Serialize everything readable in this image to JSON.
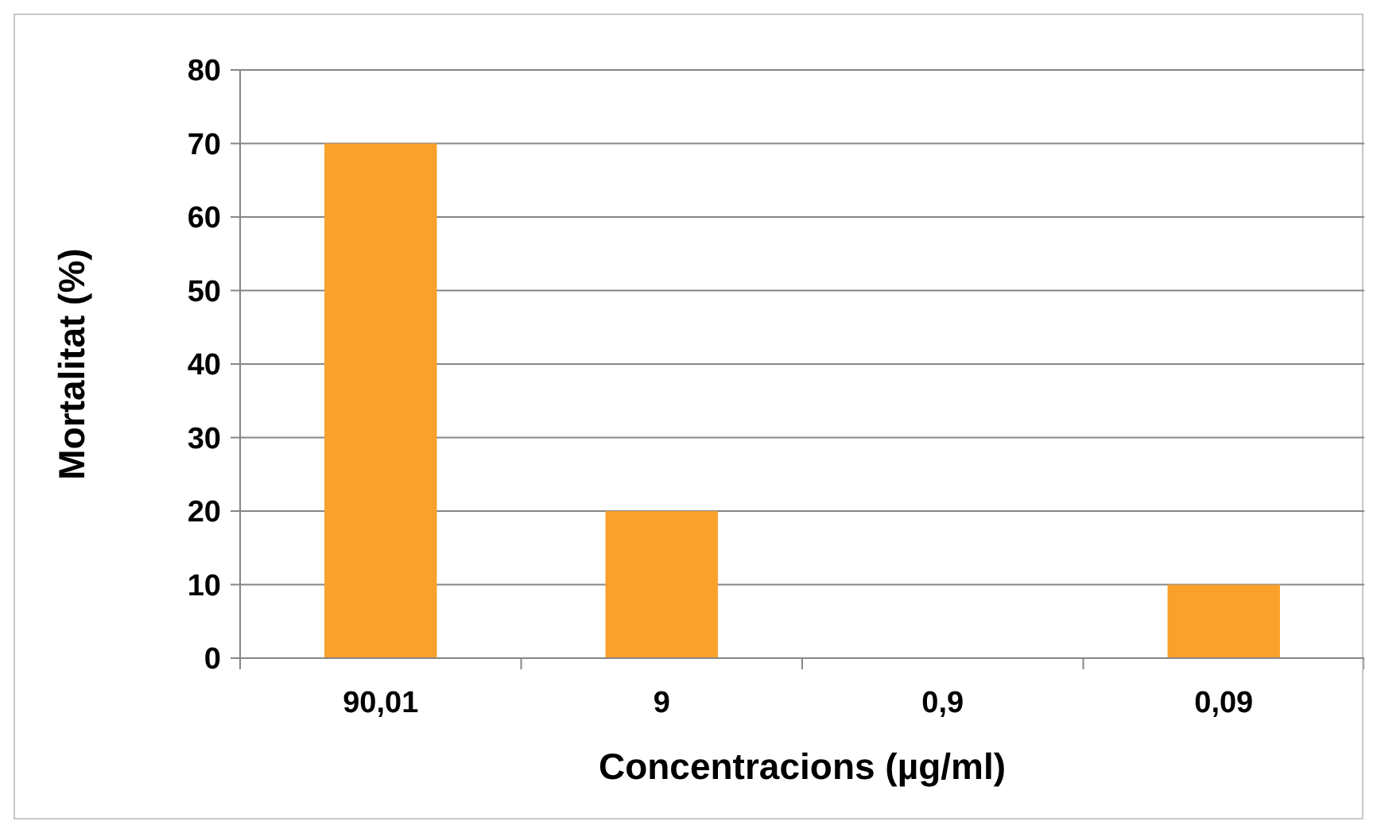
{
  "chart_data": {
    "type": "bar",
    "xlabel": "Concentracions (µg/ml)",
    "ylabel": "Mortalitat (%)",
    "categories": [
      "90,01",
      "9",
      "0,9",
      "0,09"
    ],
    "values": [
      70,
      20,
      0,
      10
    ],
    "color": "#f9a12a",
    "ylim": [
      0,
      80
    ],
    "yticks": [
      0,
      10,
      20,
      30,
      40,
      50,
      60,
      70,
      80
    ],
    "grid": "y"
  }
}
